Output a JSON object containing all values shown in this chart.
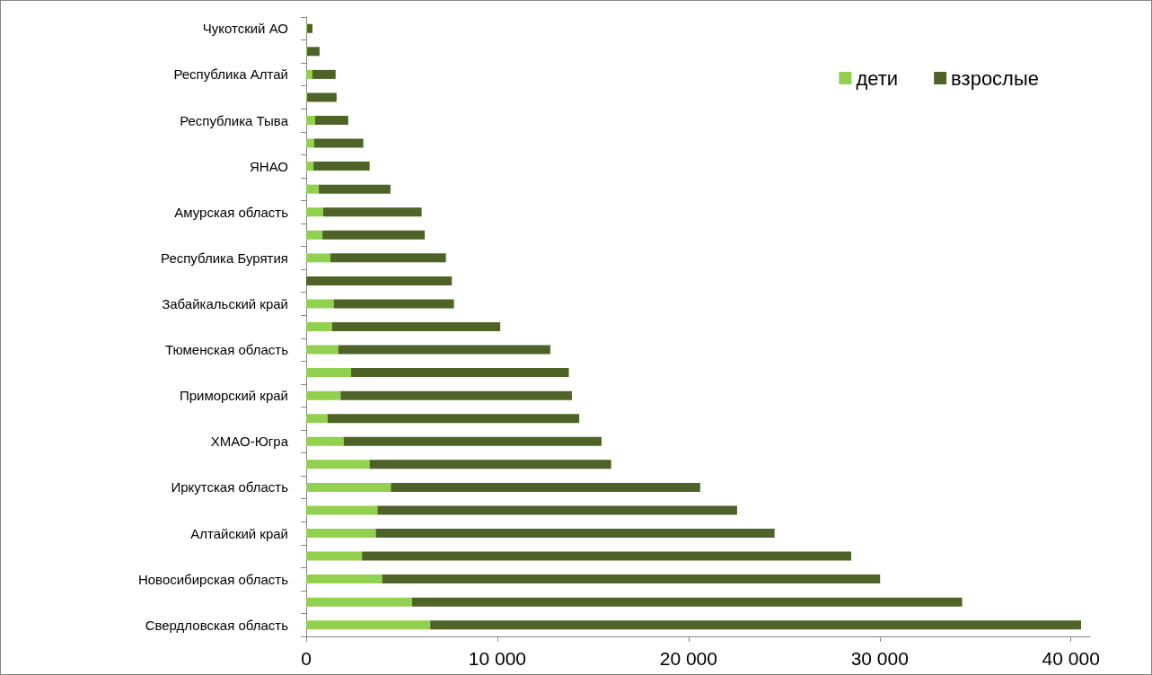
{
  "chart_data": {
    "type": "bar",
    "orientation": "horizontal",
    "stacked": true,
    "categories": [
      "Чукотский АО",
      null,
      "Республика Алтай",
      null,
      "Республика Тыва",
      null,
      "ЯНАО",
      null,
      "Амурская область",
      null,
      "Республика Бурятия",
      null,
      "Забайкальский край",
      null,
      "Тюменская область",
      null,
      "Приморский край",
      null,
      "ХМАО-Югра",
      null,
      "Иркутская область",
      null,
      "Алтайский край",
      null,
      "Новосибирская область",
      null,
      "Свердловская область"
    ],
    "series": [
      {
        "name": "дети",
        "color": "#92d050",
        "values": [
          50,
          50,
          330,
          50,
          470,
          420,
          380,
          660,
          890,
          850,
          1270,
          0,
          1440,
          1360,
          1680,
          2350,
          1800,
          1120,
          1960,
          3320,
          4430,
          3730,
          3640,
          2920,
          3970,
          5540,
          6490
        ]
      },
      {
        "name": "взрослые",
        "color": "#4f6228",
        "values": [
          280,
          650,
          1210,
          1540,
          1730,
          2570,
          2940,
          3750,
          5150,
          5350,
          6040,
          7620,
          6290,
          8790,
          11090,
          11390,
          12100,
          13160,
          13490,
          12630,
          16180,
          18810,
          20860,
          25590,
          26050,
          28770,
          34040
        ]
      }
    ],
    "xlim": [
      0,
      41000
    ],
    "xticks": [
      0,
      {
        "value": 10000,
        "label": "10 000"
      },
      {
        "value": 20000,
        "label": "20 000"
      },
      {
        "value": 30000,
        "label": "30 000"
      },
      {
        "value": 40000,
        "label": "40 000"
      }
    ],
    "grid": false,
    "legend": "top right"
  }
}
